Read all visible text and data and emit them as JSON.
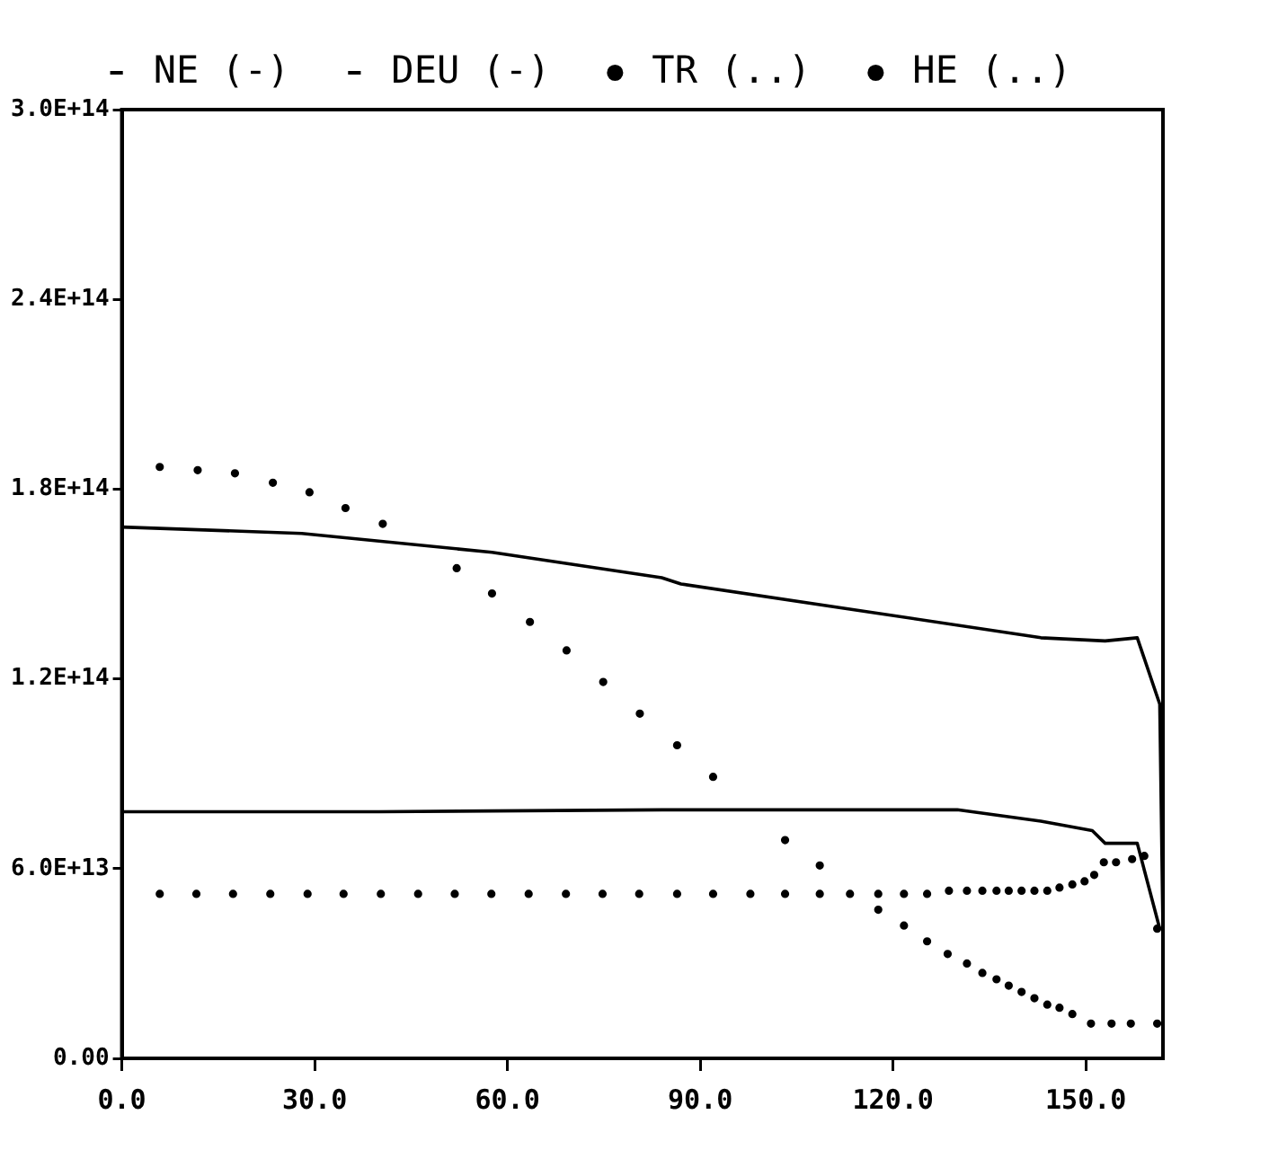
{
  "chart_data": {
    "type": "line",
    "legend": "top",
    "grid": false,
    "xlim": [
      0,
      162
    ],
    "xticks": [
      {
        "value": 0,
        "label": "0.0"
      },
      {
        "value": 30,
        "label": "30.0"
      },
      {
        "value": 60,
        "label": "60.0"
      },
      {
        "value": 90,
        "label": "90.0"
      },
      {
        "value": 120,
        "label": "120.0"
      },
      {
        "value": 150,
        "label": "150.0"
      }
    ],
    "ylim": [
      0,
      300000000000000.0
    ],
    "yticks": [
      {
        "value": 0,
        "label": "0.00"
      },
      {
        "value": 60000000000000.0,
        "label": "6.0E+13"
      },
      {
        "value": 120000000000000.0,
        "label": "1.2E+14"
      },
      {
        "value": 180000000000000.0,
        "label": "1.8E+14"
      },
      {
        "value": 240000000000000.0,
        "label": "2.4E+14"
      },
      {
        "value": 300000000000000.0,
        "label": "3.0E+14"
      }
    ],
    "series": [
      {
        "name": "NE (-)",
        "type": "line",
        "marker": "none",
        "line_style": "solid",
        "color": "#000000",
        "x": [
          0,
          28,
          57.6,
          84,
          87,
          113.5,
          143,
          153,
          158,
          161.5,
          162
        ],
        "values": [
          168000000000000.0,
          166000000000000.0,
          160000000000000.0,
          152000000000000.0,
          150000000000000.0,
          142000000000000.0,
          133000000000000.0,
          132000000000000.0,
          133000000000000.0,
          112000000000000.0,
          41000000000000.0
        ]
      },
      {
        "name": "DEU (-)",
        "type": "line",
        "marker": "none",
        "line_style": "solid",
        "color": "#000000",
        "x": [
          0,
          40,
          84,
          130,
          143,
          151,
          153,
          158,
          161.5
        ],
        "values": [
          78000000000000.0,
          78000000000000.0,
          78600000000000.0,
          78600000000000.0,
          75000000000000.0,
          72000000000000.0,
          68000000000000.0,
          68000000000000.0,
          41000000000000.0
        ]
      },
      {
        "name": "TR (..)",
        "type": "scatter",
        "marker": "circle",
        "color": "#000000",
        "x": [
          5.9,
          11.8,
          17.6,
          23.5,
          29.2,
          34.8,
          40.6,
          52.1,
          57.6,
          63.5,
          69.2,
          74.9,
          80.6,
          86.4,
          92.0,
          103.2,
          108.6,
          117.7,
          121.7,
          125.3,
          128.5,
          131.5,
          133.9,
          136.1,
          138.0,
          140.0,
          142.0,
          144.0,
          145.9,
          147.9,
          150.8,
          154,
          157,
          161.1
        ],
        "values": [
          187000000000000.0,
          186000000000000.0,
          185000000000000.0,
          182000000000000.0,
          179000000000000.0,
          174000000000000.0,
          169000000000000.0,
          155000000000000.0,
          147000000000000.0,
          138000000000000.0,
          129000000000000.0,
          119000000000000.0,
          109000000000000.0,
          99000000000000.0,
          89000000000000.0,
          69000000000000.0,
          61000000000000.0,
          47000000000000.0,
          42000000000000.0,
          37000000000000.0,
          33000000000000.0,
          30000000000000.0,
          27000000000000.0,
          25000000000000.0,
          23000000000000.0,
          21000000000000.0,
          19000000000000.0,
          17000000000000.0,
          16000000000000.0,
          14000000000000.0,
          11000000000000.0,
          11000000000000.0,
          11000000000000.0,
          11000000000000.0
        ]
      },
      {
        "name": "HE (..)",
        "type": "scatter",
        "marker": "circle",
        "color": "#000000",
        "x": [
          5.9,
          11.6,
          17.3,
          23.1,
          28.9,
          34.5,
          40.3,
          46.1,
          51.8,
          57.5,
          63.3,
          69.1,
          74.8,
          80.5,
          86.4,
          92.0,
          97.8,
          103.2,
          108.6,
          113.3,
          117.7,
          121.7,
          125.3,
          128.7,
          131.5,
          133.9,
          136.1,
          138.0,
          140.0,
          142.0,
          144.0,
          145.9,
          147.9,
          149.8,
          151.3,
          152.8,
          154.7,
          157.2,
          159.1,
          161.1
        ],
        "values": [
          52000000000000.0,
          52000000000000.0,
          52000000000000.0,
          52000000000000.0,
          52000000000000.0,
          52000000000000.0,
          52000000000000.0,
          52000000000000.0,
          52000000000000.0,
          52000000000000.0,
          52000000000000.0,
          52000000000000.0,
          52000000000000.0,
          52000000000000.0,
          52000000000000.0,
          52000000000000.0,
          52000000000000.0,
          52000000000000.0,
          52000000000000.0,
          52000000000000.0,
          52000000000000.0,
          52000000000000.0,
          52000000000000.0,
          53000000000000.0,
          53000000000000.0,
          53000000000000.0,
          53000000000000.0,
          53000000000000.0,
          53000000000000.0,
          53000000000000.0,
          53000000000000.0,
          54000000000000.0,
          55000000000000.0,
          56000000000000.0,
          58000000000000.0,
          62000000000000.0,
          62000000000000.0,
          63000000000000.0,
          64000000000000.0,
          41000000000000.0
        ]
      }
    ]
  }
}
